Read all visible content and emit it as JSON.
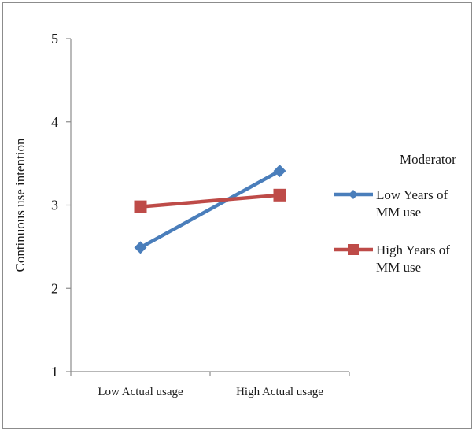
{
  "chart_data": {
    "type": "line",
    "categories": [
      "Low Actual usage",
      "High Actual usage"
    ],
    "series": [
      {
        "name": "Low Years of MM use",
        "name_lines": [
          "Low Years of",
          "MM use"
        ],
        "values": [
          2.49,
          3.41
        ],
        "color": "#4a7ebb",
        "marker": "diamond"
      },
      {
        "name": "High Years of MM use",
        "name_lines": [
          "High Years of",
          "MM use"
        ],
        "values": [
          2.98,
          3.12
        ],
        "color": "#be4b48",
        "marker": "square"
      }
    ],
    "ylabel": "Continuous use intention",
    "xlabel": "",
    "ylim": [
      1,
      5
    ],
    "yticks": [
      "1",
      "2",
      "3",
      "4",
      "5"
    ],
    "legend": {
      "title": "Moderator",
      "placement": "right"
    },
    "grid": false
  }
}
